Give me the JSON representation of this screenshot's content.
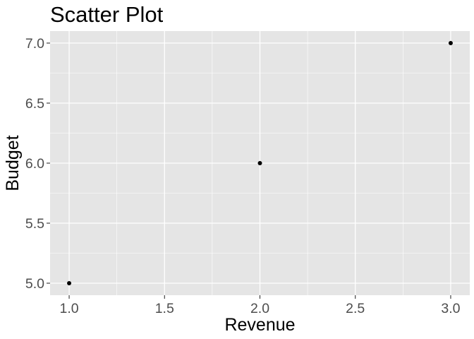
{
  "chart_data": {
    "type": "scatter",
    "title": "Scatter Plot",
    "xlabel": "Revenue",
    "ylabel": "Budget",
    "x": [
      1,
      2,
      3
    ],
    "y": [
      5,
      6,
      7
    ],
    "xlim": [
      0.9,
      3.1
    ],
    "ylim": [
      4.9,
      7.1
    ],
    "x_ticks": [
      "1.0",
      "1.5",
      "2.0",
      "2.5",
      "3.0"
    ],
    "y_ticks": [
      "5.0",
      "5.5",
      "6.0",
      "6.5",
      "7.0"
    ],
    "grid": true,
    "legend": "none",
    "colors": {
      "panel_background": "#e5e5e5",
      "grid_line": "#ffffff",
      "point": "#000000",
      "tick_label": "#4d4d4d",
      "axis_tick": "#333333"
    }
  }
}
